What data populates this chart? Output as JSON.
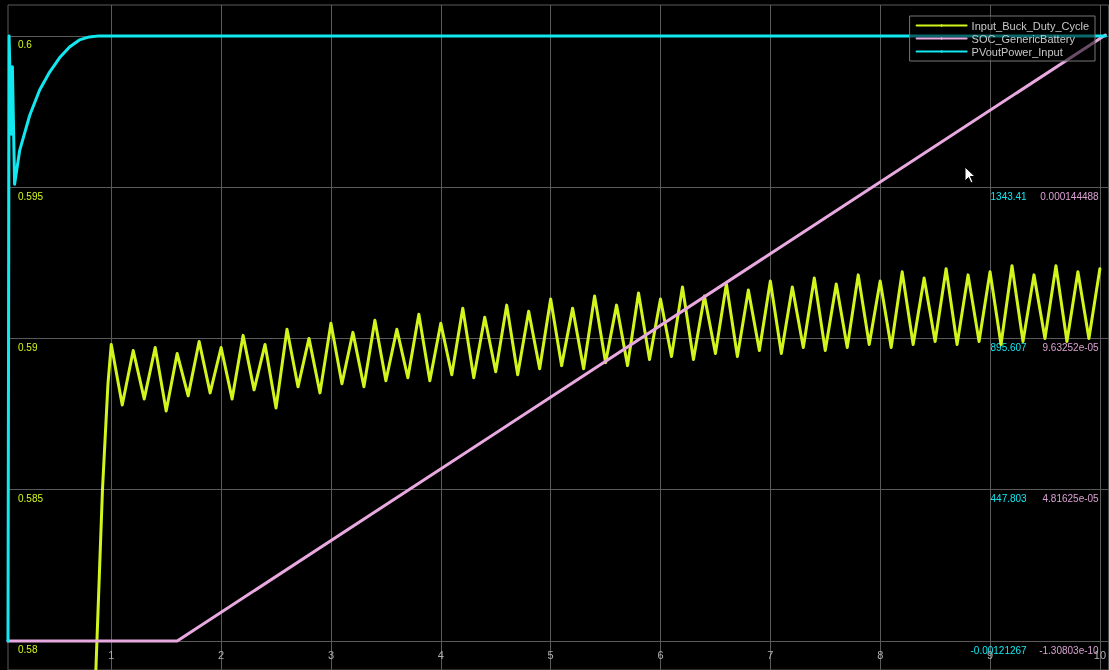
{
  "chart_data": {
    "type": "line",
    "xlim": [
      0.06,
      10.08
    ],
    "xticks": [
      1,
      2,
      3,
      4,
      5,
      6,
      7,
      8,
      9,
      10
    ],
    "ylim": [
      0.57904,
      0.60102
    ],
    "yticks": [
      0.58,
      0.585,
      0.59,
      0.595,
      0.6
    ],
    "y2lim": [
      -85.8,
      1882.4
    ],
    "y2ticks": [
      -0.00121267,
      447.803,
      895.607,
      1343.41
    ],
    "y3lim": [
      -9.23e-06,
      0.00020245
    ],
    "y3ticks": [
      {
        "value": -1.30803e-10,
        "label": "-1.30803e-10"
      },
      {
        "value": 4.81625e-05,
        "label": "4.81625e-05"
      },
      {
        "value": 9.63252e-05,
        "label": "9.63252e-05"
      },
      {
        "value": 0.000144488,
        "label": "0.000144488"
      }
    ],
    "grid": true,
    "legend": "top right",
    "line_style": "solid",
    "marker": "none",
    "series": [
      {
        "name": "Input_Buck_Duty_Cycle",
        "color": "#d4f51c",
        "x": [
          0.86,
          0.92,
          0.97,
          1.0,
          1.1,
          1.2,
          1.3,
          1.4,
          1.5,
          1.6,
          1.7,
          1.8,
          1.9,
          2.0,
          2.1,
          2.2,
          2.3,
          2.4,
          2.5,
          2.6,
          2.7,
          2.8,
          2.9,
          3.0,
          3.1,
          3.2,
          3.3,
          3.4,
          3.5,
          3.6,
          3.7,
          3.8,
          3.9,
          4.0,
          4.1,
          4.2,
          4.3,
          4.4,
          4.5,
          4.6,
          4.7,
          4.8,
          4.9,
          5.0,
          5.1,
          5.2,
          5.3,
          5.4,
          5.5,
          5.6,
          5.7,
          5.8,
          5.9,
          6.0,
          6.1,
          6.2,
          6.3,
          6.4,
          6.5,
          6.6,
          6.7,
          6.8,
          6.9,
          7.0,
          7.1,
          7.2,
          7.3,
          7.4,
          7.5,
          7.6,
          7.7,
          7.8,
          7.9,
          8.0,
          8.1,
          8.2,
          8.3,
          8.4,
          8.5,
          8.6,
          8.7,
          8.8,
          8.9,
          9.0,
          9.1,
          9.2,
          9.3,
          9.4,
          9.5,
          9.6,
          9.7,
          9.8,
          9.9,
          10.0
        ],
        "values": [
          0.57905,
          0.585,
          0.5885,
          0.5898,
          0.5878,
          0.5896,
          0.588,
          0.5897,
          0.5876,
          0.5895,
          0.5881,
          0.5899,
          0.5882,
          0.5897,
          0.588,
          0.5901,
          0.5883,
          0.5898,
          0.5877,
          0.5903,
          0.5884,
          0.59,
          0.5882,
          0.5905,
          0.5885,
          0.5902,
          0.5884,
          0.5906,
          0.5886,
          0.5903,
          0.5887,
          0.5908,
          0.5886,
          0.5905,
          0.5888,
          0.591,
          0.5887,
          0.5907,
          0.5889,
          0.5911,
          0.5888,
          0.5909,
          0.589,
          0.5913,
          0.5891,
          0.591,
          0.589,
          0.5914,
          0.5892,
          0.5911,
          0.5891,
          0.5915,
          0.5893,
          0.5913,
          0.5894,
          0.5917,
          0.5893,
          0.5914,
          0.5895,
          0.5918,
          0.5894,
          0.5916,
          0.5896,
          0.5919,
          0.5895,
          0.5917,
          0.5897,
          0.592,
          0.5896,
          0.5918,
          0.5897,
          0.5921,
          0.5898,
          0.5919,
          0.5897,
          0.5922,
          0.5898,
          0.592,
          0.5899,
          0.5923,
          0.5898,
          0.5921,
          0.5899,
          0.5922,
          0.5898,
          0.5924,
          0.5899,
          0.5921,
          0.59,
          0.5924,
          0.5899,
          0.5922,
          0.59,
          0.5923
        ]
      },
      {
        "name": "SOC_GenericBattery",
        "color": "#e8a8e0",
        "axis": "y3",
        "x": [
          0.06,
          1.6,
          10.05
        ],
        "values": [
          0,
          0,
          0.0001929
        ]
      },
      {
        "name": "PVoutPower_Input",
        "color": "#12e8f0",
        "axis": "y2",
        "x": [
          0.06,
          0.07,
          0.09,
          0.1,
          0.12,
          0.167,
          0.258,
          0.348,
          0.439,
          0.529,
          0.62,
          0.71,
          0.8,
          0.89,
          10.05
        ],
        "values": [
          0,
          1791,
          1500,
          1700,
          1352,
          1453,
          1556,
          1631,
          1684,
          1726,
          1758,
          1779,
          1788,
          1791,
          1791
        ]
      }
    ]
  }
}
